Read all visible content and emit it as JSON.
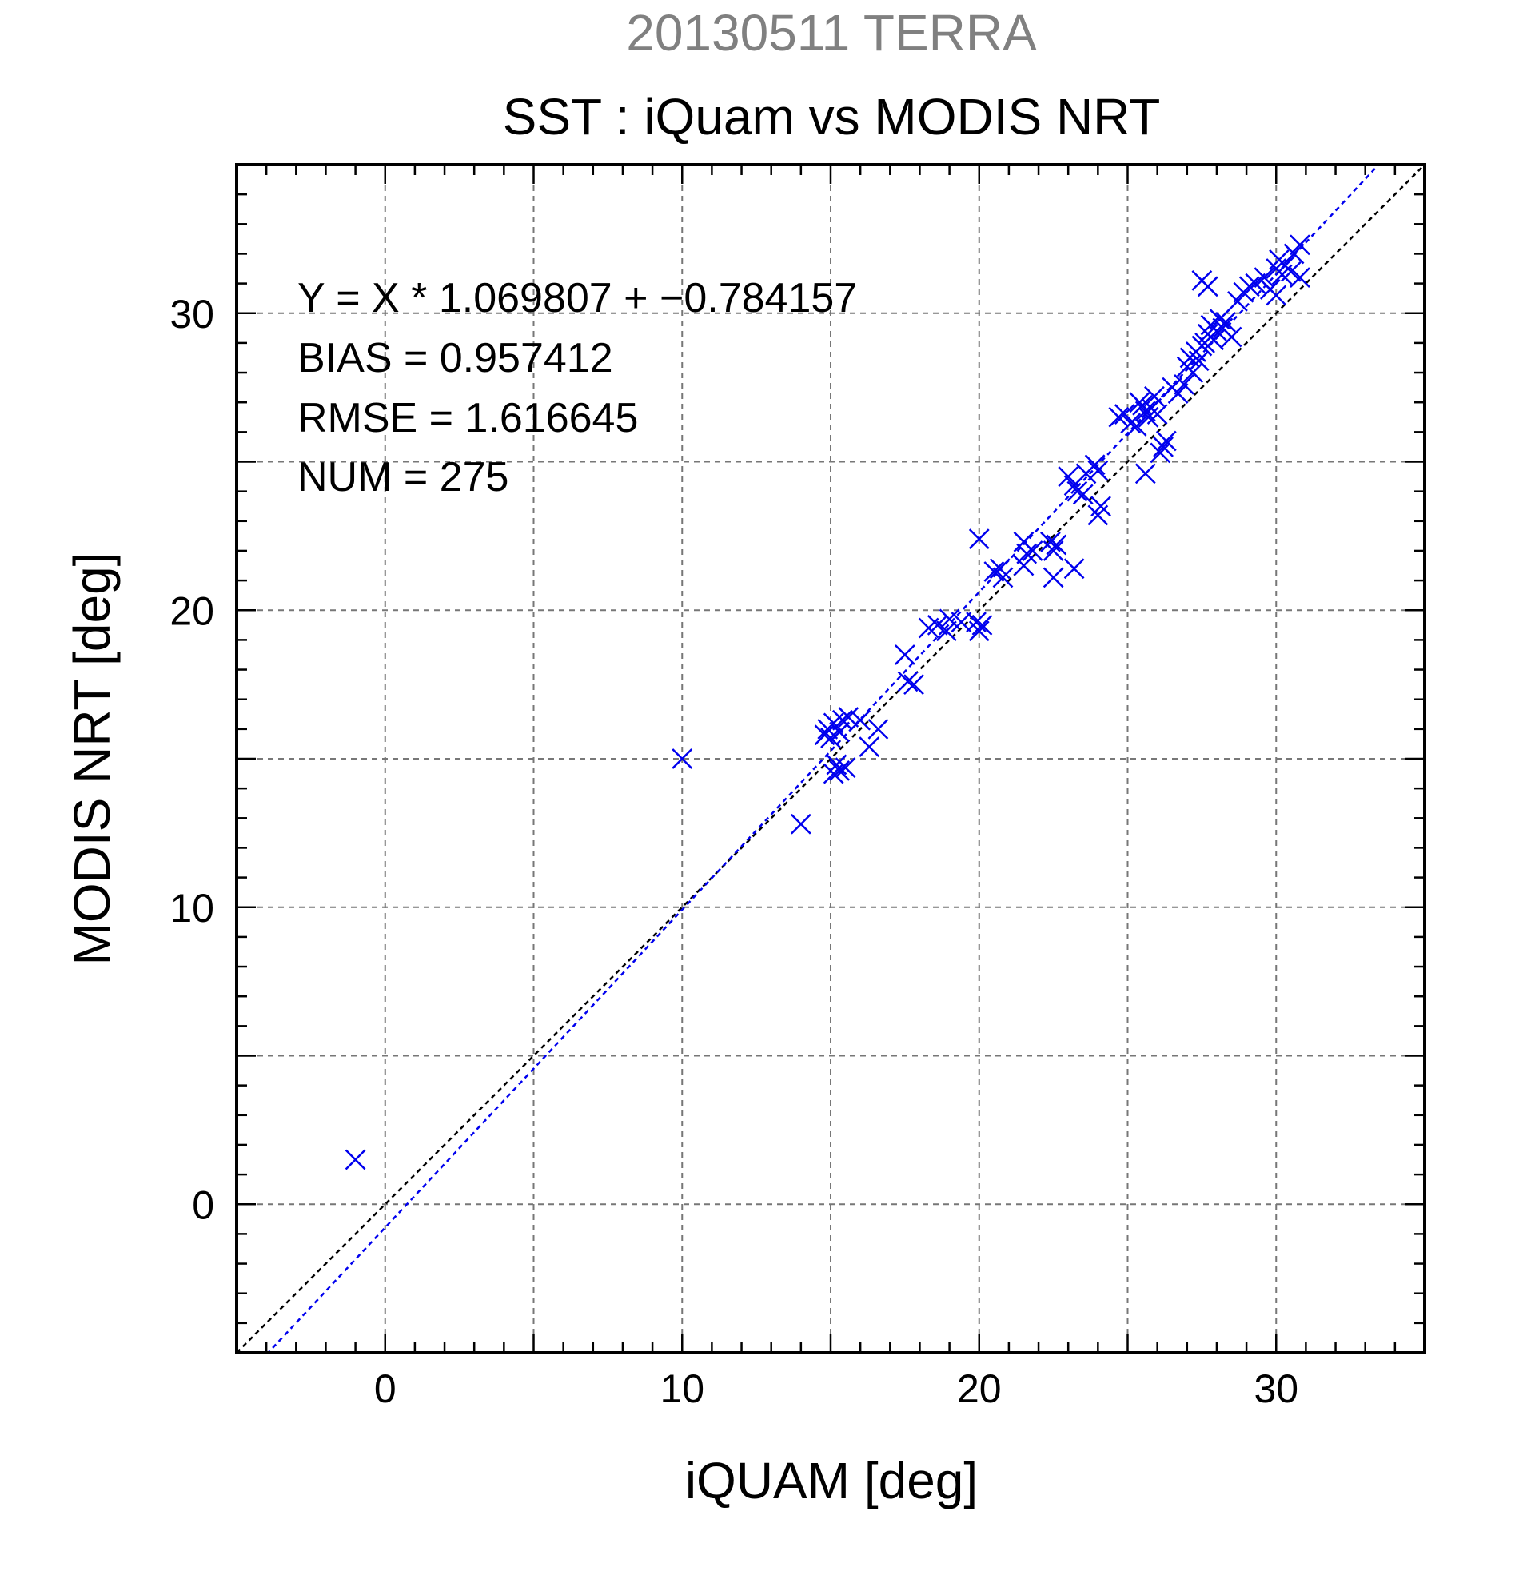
{
  "chart_data": {
    "type": "scatter",
    "title": "SST : iQuam vs MODIS NRT",
    "subtitle": "20130511 TERRA",
    "xlabel": "iQUAM [deg]",
    "ylabel": "MODIS NRT [deg]",
    "xlim": [
      -5,
      35
    ],
    "ylim": [
      -5,
      35
    ],
    "xticks": [
      0,
      10,
      20,
      30
    ],
    "yticks": [
      0,
      10,
      20,
      30
    ],
    "grid_step": 5,
    "minor_step": 1,
    "grid": true,
    "annotations": [
      "Y = X * 1.069807 + −0.784157",
      "BIAS = 0.957412",
      "RMSE = 1.616645",
      "NUM = 275"
    ],
    "fit": {
      "slope": 1.069807,
      "intercept": -0.784157,
      "color": "#0000ee"
    },
    "identity_line_color": "#000000",
    "marker_color": "#0000ee",
    "points": [
      [
        -1,
        1.5
      ],
      [
        10,
        15
      ],
      [
        14,
        12.8
      ],
      [
        14.8,
        15.8
      ],
      [
        14.9,
        16.0
      ],
      [
        15.0,
        15.7
      ],
      [
        15.1,
        16.2
      ],
      [
        15.3,
        15.9
      ],
      [
        15.4,
        16.3
      ],
      [
        15.6,
        16.4
      ],
      [
        16.0,
        16.3
      ],
      [
        15.1,
        14.5
      ],
      [
        15.2,
        14.8
      ],
      [
        15.3,
        14.6
      ],
      [
        15.5,
        14.7
      ],
      [
        16.3,
        15.4
      ],
      [
        16.6,
        16.0
      ],
      [
        17.5,
        18.5
      ],
      [
        17.6,
        17.6
      ],
      [
        17.8,
        17.5
      ],
      [
        18.3,
        19.4
      ],
      [
        18.6,
        19.5
      ],
      [
        18.9,
        19.3
      ],
      [
        19.0,
        19.7
      ],
      [
        19.4,
        19.6
      ],
      [
        19.9,
        19.6
      ],
      [
        20.0,
        19.3
      ],
      [
        20.1,
        19.5
      ],
      [
        20.0,
        22.4
      ],
      [
        20.5,
        21.3
      ],
      [
        20.7,
        21.4
      ],
      [
        20.8,
        21.1
      ],
      [
        21.5,
        21.5
      ],
      [
        21.6,
        21.9
      ],
      [
        21.8,
        22.0
      ],
      [
        21.5,
        22.3
      ],
      [
        22.4,
        22.3
      ],
      [
        22.5,
        22.0
      ],
      [
        22.6,
        22.2
      ],
      [
        22.5,
        21.1
      ],
      [
        23.2,
        21.4
      ],
      [
        23.0,
        24.5
      ],
      [
        23.2,
        24.2
      ],
      [
        23.3,
        24.0
      ],
      [
        23.5,
        23.9
      ],
      [
        23.6,
        24.6
      ],
      [
        23.9,
        24.9
      ],
      [
        24.0,
        24.7
      ],
      [
        24.1,
        23.5
      ],
      [
        24.0,
        23.2
      ],
      [
        24.7,
        26.5
      ],
      [
        24.9,
        26.6
      ],
      [
        25.1,
        26.3
      ],
      [
        25.3,
        26.2
      ],
      [
        25.4,
        27.0
      ],
      [
        25.5,
        26.9
      ],
      [
        25.6,
        26.7
      ],
      [
        25.7,
        26.5
      ],
      [
        25.8,
        26.8
      ],
      [
        25.9,
        27.2
      ],
      [
        26.0,
        26.6
      ],
      [
        26.1,
        25.3
      ],
      [
        26.2,
        25.5
      ],
      [
        26.3,
        25.7
      ],
      [
        25.6,
        24.6
      ],
      [
        26.5,
        27.5
      ],
      [
        26.7,
        27.3
      ],
      [
        26.9,
        27.6
      ],
      [
        27.0,
        28.2
      ],
      [
        27.1,
        28.5
      ],
      [
        27.2,
        28.0
      ],
      [
        27.3,
        28.7
      ],
      [
        27.4,
        28.4
      ],
      [
        27.5,
        28.9
      ],
      [
        27.6,
        29.0
      ],
      [
        27.7,
        29.3
      ],
      [
        27.8,
        29.6
      ],
      [
        27.9,
        29.1
      ],
      [
        28.0,
        29.4
      ],
      [
        28.1,
        29.8
      ],
      [
        28.2,
        29.5
      ],
      [
        28.3,
        29.7
      ],
      [
        28.5,
        29.2
      ],
      [
        27.5,
        31.1
      ],
      [
        27.7,
        30.9
      ],
      [
        28.7,
        30.4
      ],
      [
        28.9,
        30.7
      ],
      [
        29.1,
        30.9
      ],
      [
        29.3,
        31.0
      ],
      [
        29.6,
        31.2
      ],
      [
        29.8,
        30.8
      ],
      [
        30.0,
        31.5
      ],
      [
        30.1,
        31.8
      ],
      [
        30.2,
        31.3
      ],
      [
        30.3,
        31.6
      ],
      [
        30.0,
        30.6
      ],
      [
        30.5,
        31.4
      ],
      [
        30.6,
        32.0
      ],
      [
        30.8,
        32.3
      ],
      [
        30.8,
        31.2
      ]
    ]
  }
}
